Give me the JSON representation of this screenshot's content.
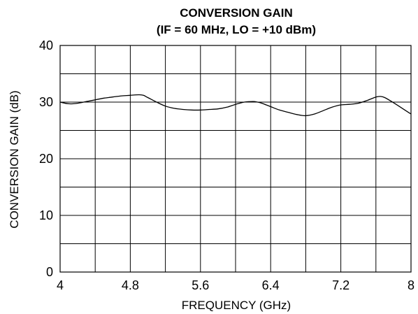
{
  "chart_data": {
    "type": "line",
    "title": "CONVERSION GAIN",
    "subtitle": "(IF = 60 MHz, LO = +10 dBm)",
    "xlabel": "FREQUENCY (GHz)",
    "ylabel": "CONVERSION GAIN (dB)",
    "xlim": [
      4,
      8
    ],
    "ylim": [
      0,
      40
    ],
    "x_ticks": [
      "4",
      "4.8",
      "5.6",
      "6.4",
      "7.2",
      "8"
    ],
    "y_ticks": [
      "0",
      "10",
      "20",
      "30",
      "40"
    ],
    "x_tick_values": [
      4,
      4.8,
      5.6,
      6.4,
      7.2,
      8
    ],
    "y_tick_values": [
      0,
      10,
      20,
      30,
      40
    ],
    "x_grid_step": 0.4,
    "y_grid_step": 5,
    "grid": true,
    "series": [
      {
        "x": [
          4.0,
          4.1,
          4.2,
          4.3,
          4.4,
          4.5,
          4.6,
          4.7,
          4.8,
          4.9,
          4.95,
          5.0,
          5.1,
          5.2,
          5.3,
          5.4,
          5.5,
          5.6,
          5.7,
          5.8,
          5.9,
          6.0,
          6.1,
          6.2,
          6.25,
          6.3,
          6.4,
          6.5,
          6.6,
          6.7,
          6.8,
          6.9,
          7.0,
          7.1,
          7.2,
          7.3,
          7.4,
          7.5,
          7.6,
          7.65,
          7.7,
          7.8,
          7.9,
          8.0
        ],
        "y": [
          30.0,
          29.7,
          29.8,
          30.1,
          30.4,
          30.7,
          30.9,
          31.1,
          31.2,
          31.3,
          31.2,
          30.8,
          30.0,
          29.3,
          28.9,
          28.7,
          28.6,
          28.6,
          28.7,
          28.8,
          29.1,
          29.6,
          30.0,
          30.1,
          30.0,
          29.8,
          29.2,
          28.6,
          28.2,
          27.8,
          27.6,
          27.9,
          28.5,
          29.1,
          29.5,
          29.6,
          29.8,
          30.3,
          30.9,
          31.0,
          30.8,
          29.9,
          28.9,
          27.9
        ]
      }
    ]
  }
}
